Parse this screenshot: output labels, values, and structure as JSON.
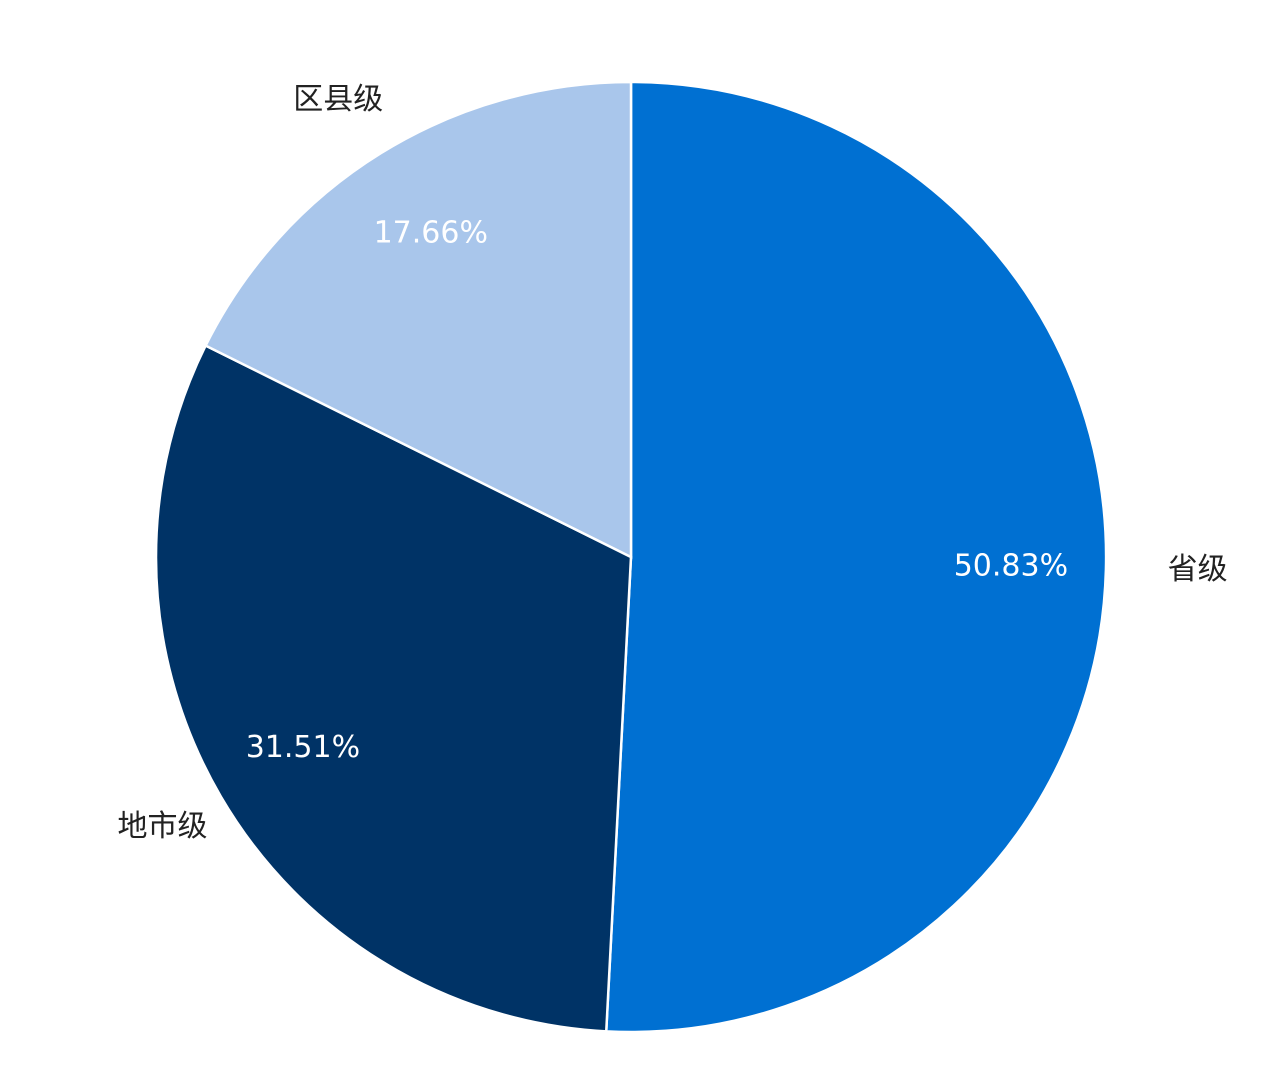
{
  "chart_data": {
    "type": "pie",
    "title": "",
    "start_angle": "12 o'clock",
    "direction": "clockwise",
    "legend": "none",
    "slices": [
      {
        "label": "省级",
        "value": 50.83,
        "display": "50.83%",
        "color": "#0070D2"
      },
      {
        "label": "地市级",
        "value": 31.51,
        "display": "31.51%",
        "color": "#003366"
      },
      {
        "label": "区县级",
        "value": 17.66,
        "display": "17.66%",
        "color": "#A9C6EB"
      }
    ]
  }
}
